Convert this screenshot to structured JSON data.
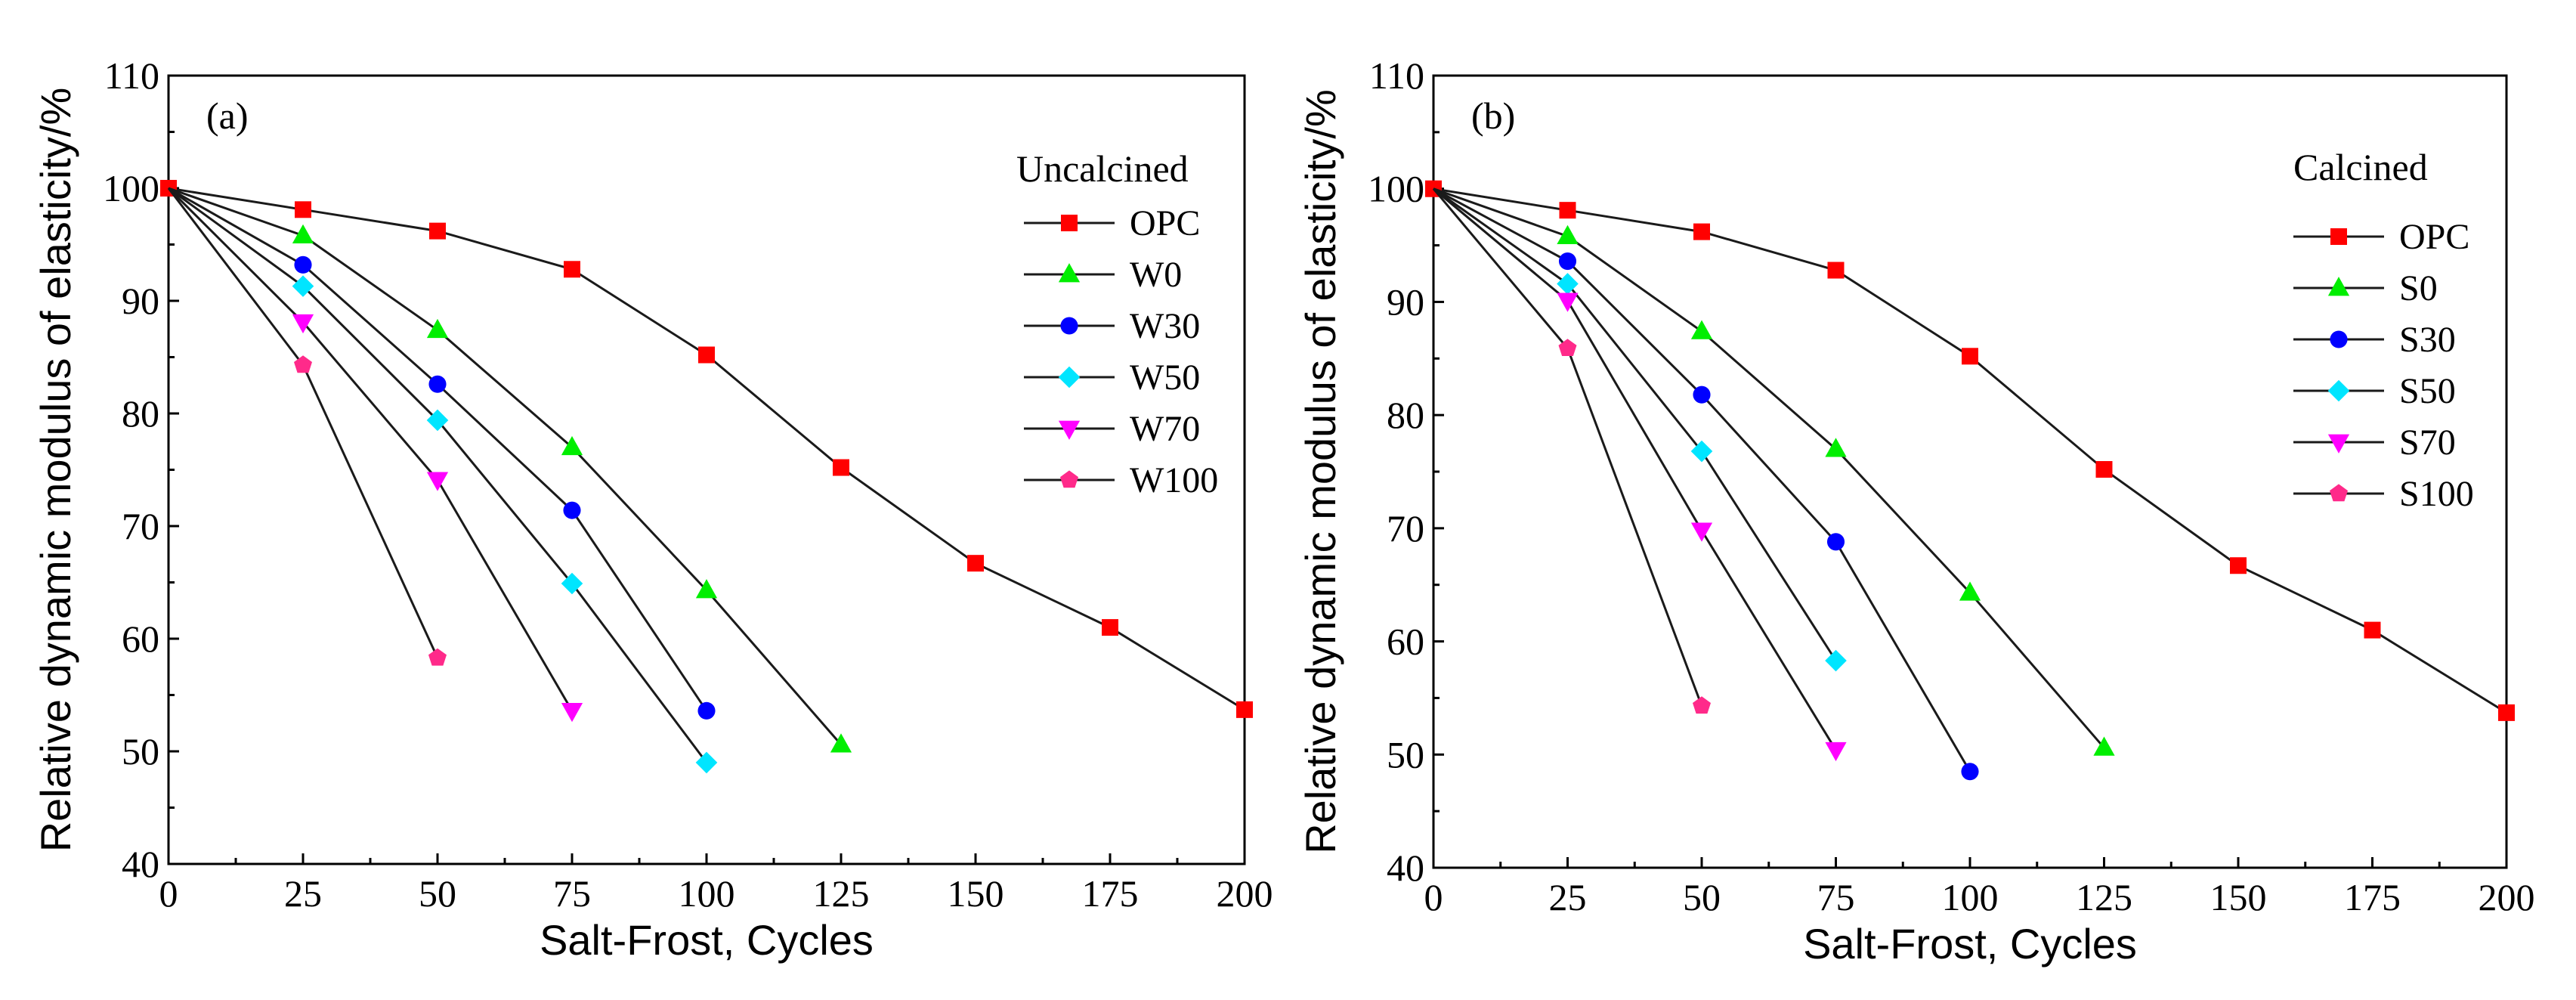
{
  "chart_data": [
    {
      "id": "a",
      "type": "line",
      "panel_label": "(a)",
      "legend_title": "Uncalcined",
      "xlabel": "Salt-Frost, Cycles",
      "ylabel": "Relative dynamic modulus of elasticity/%",
      "xlim": [
        0,
        200
      ],
      "ylim": [
        40,
        110
      ],
      "xticks": [
        "0",
        "25",
        "50",
        "75",
        "100",
        "125",
        "150",
        "175",
        "200"
      ],
      "yticks": [
        "40",
        "50",
        "60",
        "70",
        "80",
        "90",
        "100",
        "110"
      ],
      "legend_position": "right",
      "series": [
        {
          "name": "OPC",
          "marker": "square",
          "color": "#ff0000",
          "x": [
            0,
            25,
            50,
            75,
            100,
            125,
            150,
            175,
            200
          ],
          "values": [
            100,
            98.1,
            96.2,
            92.8,
            85.2,
            75.2,
            66.7,
            61.0,
            53.7
          ]
        },
        {
          "name": "W0",
          "marker": "triangle-up",
          "color": "#00ee00",
          "x": [
            0,
            25,
            50,
            75,
            100,
            125
          ],
          "values": [
            100,
            95.8,
            87.4,
            77.0,
            64.3,
            50.6
          ]
        },
        {
          "name": "W30",
          "marker": "circle",
          "color": "#0000ff",
          "x": [
            0,
            25,
            50,
            75,
            100
          ],
          "values": [
            100,
            93.2,
            82.6,
            71.4,
            53.6
          ]
        },
        {
          "name": "W50",
          "marker": "diamond",
          "color": "#00e5ff",
          "x": [
            0,
            25,
            50,
            75,
            100
          ],
          "values": [
            100,
            91.3,
            79.4,
            64.9,
            49.0
          ]
        },
        {
          "name": "W70",
          "marker": "triangle-down",
          "color": "#ff00ff",
          "x": [
            0,
            25,
            50,
            75
          ],
          "values": [
            100,
            88.1,
            74.1,
            53.6
          ]
        },
        {
          "name": "W100",
          "marker": "pentagon",
          "color": "#ff2a8a",
          "x": [
            0,
            25,
            50
          ],
          "values": [
            100,
            84.3,
            58.3
          ]
        }
      ]
    },
    {
      "id": "b",
      "type": "line",
      "panel_label": "(b)",
      "legend_title": "Calcined",
      "xlabel": "Salt-Frost, Cycles",
      "ylabel": "Relative dynamic modulus of elasticity/%",
      "xlim": [
        0,
        200
      ],
      "ylim": [
        40,
        110
      ],
      "xticks": [
        "0",
        "25",
        "50",
        "75",
        "100",
        "125",
        "150",
        "175",
        "200"
      ],
      "yticks": [
        "40",
        "50",
        "60",
        "70",
        "80",
        "90",
        "100",
        "110"
      ],
      "legend_position": "right",
      "series": [
        {
          "name": "OPC",
          "marker": "square",
          "color": "#ff0000",
          "x": [
            0,
            25,
            50,
            75,
            100,
            125,
            150,
            175,
            200
          ],
          "values": [
            100,
            98.1,
            96.2,
            92.8,
            85.2,
            75.2,
            66.7,
            61.0,
            53.7
          ]
        },
        {
          "name": "S0",
          "marker": "triangle-up",
          "color": "#00ee00",
          "x": [
            0,
            25,
            50,
            75,
            100,
            125
          ],
          "values": [
            100,
            95.8,
            87.4,
            77.0,
            64.3,
            50.6
          ]
        },
        {
          "name": "S30",
          "marker": "circle",
          "color": "#0000ff",
          "x": [
            0,
            25,
            50,
            75,
            100
          ],
          "values": [
            100,
            93.6,
            81.8,
            68.8,
            48.5
          ]
        },
        {
          "name": "S50",
          "marker": "diamond",
          "color": "#00e5ff",
          "x": [
            0,
            25,
            50,
            75
          ],
          "values": [
            100,
            91.6,
            76.8,
            58.3
          ]
        },
        {
          "name": "S70",
          "marker": "triangle-down",
          "color": "#ff00ff",
          "x": [
            0,
            25,
            50,
            75
          ],
          "values": [
            100,
            90.1,
            69.8,
            50.4
          ]
        },
        {
          "name": "S100",
          "marker": "pentagon",
          "color": "#ff2a8a",
          "x": [
            0,
            25,
            50
          ],
          "values": [
            100,
            85.9,
            54.3
          ]
        }
      ]
    }
  ]
}
